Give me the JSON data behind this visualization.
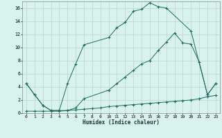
{
  "xlabel": "Humidex (Indice chaleur)",
  "bg_color": "#d8f2ee",
  "grid_color": "#c0d8d0",
  "line_color": "#1a6b5a",
  "xlim": [
    -0.5,
    23.5
  ],
  "ylim": [
    0,
    17
  ],
  "xticks": [
    0,
    1,
    2,
    3,
    4,
    5,
    6,
    7,
    8,
    9,
    10,
    11,
    12,
    13,
    14,
    15,
    16,
    17,
    18,
    19,
    20,
    21,
    22,
    23
  ],
  "yticks": [
    0,
    2,
    4,
    6,
    8,
    10,
    12,
    14,
    16
  ],
  "line1_x": [
    0,
    1,
    2,
    3,
    4,
    5,
    6,
    7,
    10,
    11,
    12,
    13,
    14,
    15,
    16,
    17,
    20,
    22,
    23
  ],
  "line1_y": [
    4.5,
    2.8,
    1.2,
    0.4,
    0.4,
    4.5,
    7.5,
    10.4,
    11.5,
    13.0,
    13.8,
    15.5,
    15.8,
    16.8,
    16.2,
    16.0,
    12.5,
    2.8,
    4.5
  ],
  "line2_x": [
    0,
    1,
    2,
    3,
    4,
    5,
    6,
    7,
    10,
    11,
    12,
    13,
    14,
    15,
    16,
    17,
    18,
    19,
    20,
    21,
    22,
    23
  ],
  "line2_y": [
    4.5,
    2.8,
    1.2,
    0.4,
    0.4,
    0.4,
    0.8,
    2.2,
    3.5,
    4.5,
    5.5,
    6.5,
    7.5,
    8.0,
    9.5,
    10.8,
    12.2,
    10.7,
    10.5,
    7.8,
    2.8,
    4.5
  ],
  "line3_x": [
    0,
    1,
    2,
    3,
    4,
    5,
    6,
    7,
    8,
    9,
    10,
    11,
    12,
    13,
    14,
    15,
    16,
    17,
    18,
    19,
    20,
    21,
    22,
    23
  ],
  "line3_y": [
    0.3,
    0.3,
    0.3,
    0.3,
    0.3,
    0.4,
    0.5,
    0.6,
    0.7,
    0.8,
    1.0,
    1.1,
    1.2,
    1.3,
    1.4,
    1.5,
    1.6,
    1.7,
    1.8,
    1.9,
    2.0,
    2.2,
    2.5,
    2.7
  ]
}
